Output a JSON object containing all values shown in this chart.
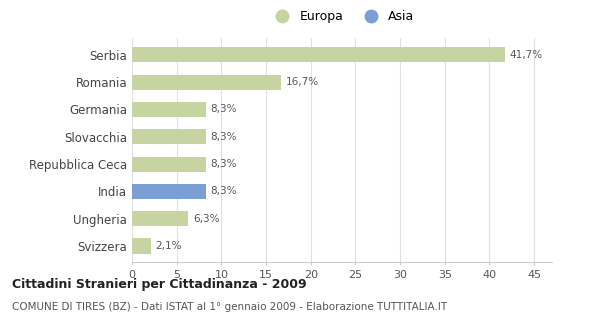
{
  "categories": [
    "Serbia",
    "Romania",
    "Germania",
    "Slovacchia",
    "Repubblica Ceca",
    "India",
    "Ungheria",
    "Svizzera"
  ],
  "values": [
    41.7,
    16.7,
    8.3,
    8.3,
    8.3,
    8.3,
    6.3,
    2.1
  ],
  "labels": [
    "41,7%",
    "16,7%",
    "8,3%",
    "8,3%",
    "8,3%",
    "8,3%",
    "6,3%",
    "2,1%"
  ],
  "colors": [
    "#c5d4a0",
    "#c5d4a0",
    "#c5d4a0",
    "#c5d4a0",
    "#c5d4a0",
    "#7b9fd4",
    "#c5d4a0",
    "#c5d4a0"
  ],
  "europa_color": "#c5d4a0",
  "asia_color": "#7b9fd4",
  "xlim": [
    0,
    47
  ],
  "xticks": [
    0,
    5,
    10,
    15,
    20,
    25,
    30,
    35,
    40,
    45
  ],
  "title": "Cittadini Stranieri per Cittadinanza - 2009",
  "subtitle": "COMUNE DI TIRES (BZ) - Dati ISTAT al 1° gennaio 2009 - Elaborazione TUTTITALIA.IT",
  "legend_europa": "Europa",
  "legend_asia": "Asia",
  "background_color": "#ffffff",
  "grid_color": "#e0e0e0"
}
